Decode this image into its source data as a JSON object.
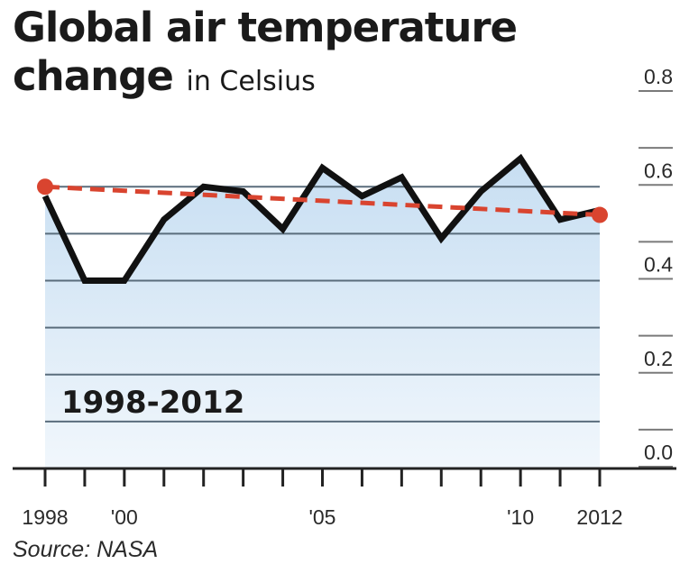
{
  "title": "Global air temperature",
  "title_line2": "change",
  "subtitle": "in Celsius",
  "source": "Source: NASA",
  "colors": {
    "line": "#111111",
    "trend": "#d9442f",
    "fill_top": "#c7def2",
    "fill_bottom": "#f1f7fc",
    "grid": "#5a6d7c",
    "axis": "#222222"
  },
  "chart_data": {
    "type": "line",
    "title": "Global air temperature change",
    "subtitle": "in Celsius",
    "x_tick_labels": [
      "1998",
      "'00",
      "'05",
      "'10",
      "2012"
    ],
    "y_tick_labels": [
      "0.0",
      "0.2",
      "0.4",
      "0.6",
      "0.8"
    ],
    "ylim": [
      0,
      0.8
    ],
    "xlim": [
      1998,
      2012
    ],
    "grid": true,
    "annotation": "1998-2012",
    "series": [
      {
        "x": [
          1998,
          1999,
          2000,
          2001,
          2002,
          2003,
          2004,
          2005,
          2006,
          2007,
          2008,
          2009,
          2010,
          2011,
          2012
        ],
        "values": [
          0.58,
          0.4,
          0.4,
          0.53,
          0.6,
          0.59,
          0.51,
          0.64,
          0.58,
          0.62,
          0.49,
          0.59,
          0.66,
          0.53,
          0.55
        ]
      }
    ],
    "trend": {
      "x": [
        1998,
        2012
      ],
      "values": [
        0.6,
        0.54
      ]
    }
  }
}
